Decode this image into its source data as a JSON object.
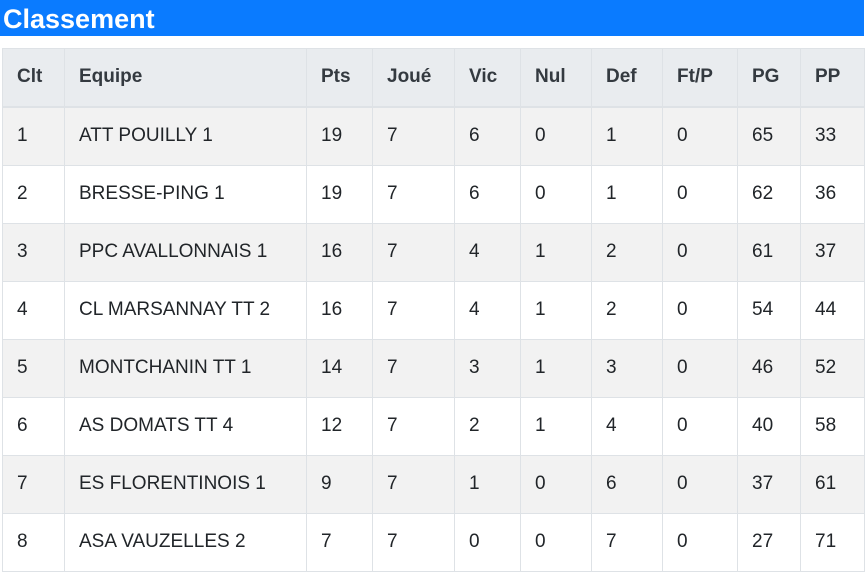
{
  "title": "Classement",
  "columns": [
    "Clt",
    "Equipe",
    "Pts",
    "Joué",
    "Vic",
    "Nul",
    "Def",
    "Ft/P",
    "PG",
    "PP"
  ],
  "rows": [
    {
      "clt": "1",
      "equipe": "ATT POUILLY 1",
      "pts": "19",
      "joue": "7",
      "vic": "6",
      "nul": "0",
      "def": "1",
      "ftp": "0",
      "pg": "65",
      "pp": "33"
    },
    {
      "clt": "2",
      "equipe": "BRESSE-PING 1",
      "pts": "19",
      "joue": "7",
      "vic": "6",
      "nul": "0",
      "def": "1",
      "ftp": "0",
      "pg": "62",
      "pp": "36"
    },
    {
      "clt": "3",
      "equipe": "PPC AVALLONNAIS 1",
      "pts": "16",
      "joue": "7",
      "vic": "4",
      "nul": "1",
      "def": "2",
      "ftp": "0",
      "pg": "61",
      "pp": "37"
    },
    {
      "clt": "4",
      "equipe": "CL MARSANNAY TT 2",
      "pts": "16",
      "joue": "7",
      "vic": "4",
      "nul": "1",
      "def": "2",
      "ftp": "0",
      "pg": "54",
      "pp": "44"
    },
    {
      "clt": "5",
      "equipe": "MONTCHANIN TT 1",
      "pts": "14",
      "joue": "7",
      "vic": "3",
      "nul": "1",
      "def": "3",
      "ftp": "0",
      "pg": "46",
      "pp": "52"
    },
    {
      "clt": "6",
      "equipe": "AS DOMATS TT 4",
      "pts": "12",
      "joue": "7",
      "vic": "2",
      "nul": "1",
      "def": "4",
      "ftp": "0",
      "pg": "40",
      "pp": "58"
    },
    {
      "clt": "7",
      "equipe": "ES FLORENTINOIS 1",
      "pts": "9",
      "joue": "7",
      "vic": "1",
      "nul": "0",
      "def": "6",
      "ftp": "0",
      "pg": "37",
      "pp": "61"
    },
    {
      "clt": "8",
      "equipe": "ASA VAUZELLES 2",
      "pts": "7",
      "joue": "7",
      "vic": "0",
      "nul": "0",
      "def": "7",
      "ftp": "0",
      "pg": "27",
      "pp": "71"
    }
  ],
  "colors": {
    "title_bar": "#0a7bff",
    "header_bg": "#e9ecef",
    "row_odd": "#f2f2f2",
    "row_even": "#ffffff",
    "border": "#dee2e6"
  }
}
